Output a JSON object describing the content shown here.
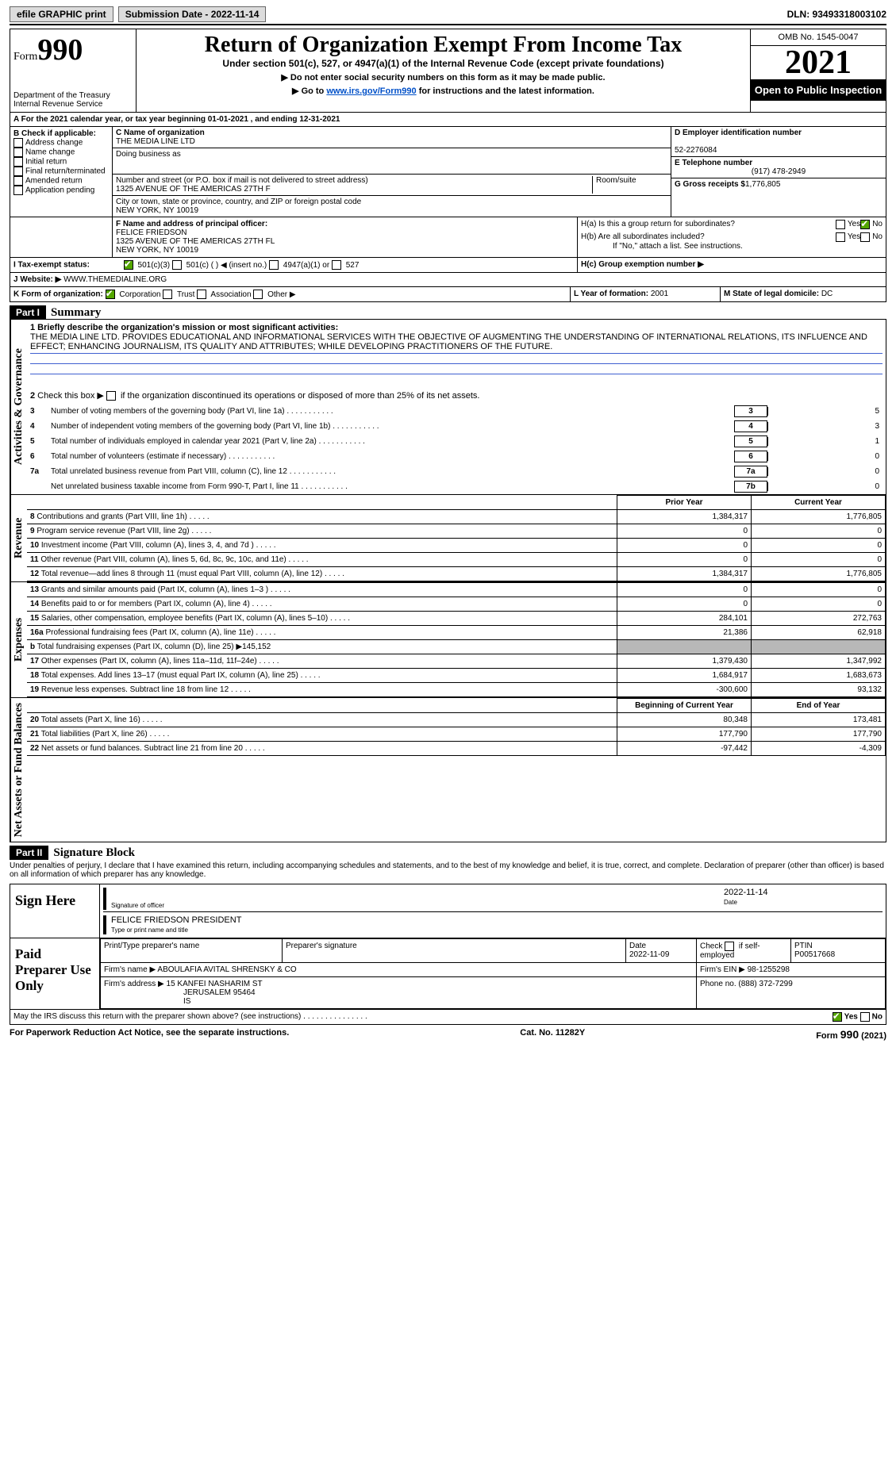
{
  "topbar": {
    "efile": "efile GRAPHIC print",
    "submission": "Submission Date - 2022-11-14",
    "dln": "DLN: 93493318003102"
  },
  "header": {
    "form_prefix": "Form",
    "form_number": "990",
    "dept": "Department of the Treasury",
    "irs": "Internal Revenue Service",
    "title": "Return of Organization Exempt From Income Tax",
    "sub": "Under section 501(c), 527, or 4947(a)(1) of the Internal Revenue Code (except private foundations)",
    "note1": "▶ Do not enter social security numbers on this form as it may be made public.",
    "note2_pre": "▶ Go to ",
    "note2_link": "www.irs.gov/Form990",
    "note2_post": " for instructions and the latest information.",
    "omb": "OMB No. 1545-0047",
    "year": "2021",
    "open": "Open to Public Inspection"
  },
  "A": {
    "line": "A For the 2021 calendar year, or tax year beginning 01-01-2021     , and ending 12-31-2021"
  },
  "B": {
    "label": "B Check if applicable:",
    "items": [
      "Address change",
      "Name change",
      "Initial return",
      "Final return/terminated",
      "Amended return",
      "Application pending"
    ]
  },
  "C": {
    "name_label": "C Name of organization",
    "name": "THE MEDIA LINE LTD",
    "dba_label": "Doing business as",
    "dba": "",
    "street_label": "Number and street (or P.O. box if mail is not delivered to street address)",
    "room": "Room/suite",
    "street": "1325 AVENUE OF THE AMERICAS 27TH F",
    "city_label": "City or town, state or province, country, and ZIP or foreign postal code",
    "city": "NEW YORK, NY  10019"
  },
  "D": {
    "label": "D Employer identification number",
    "value": "52-2276084"
  },
  "E": {
    "label": "E Telephone number",
    "value": "(917) 478-2949"
  },
  "G": {
    "label": "G Gross receipts $",
    "value": "1,776,805"
  },
  "F": {
    "label": "F  Name and address of principal officer:",
    "name": "FELICE FRIEDSON",
    "addr1": "1325 AVENUE OF THE AMERICAS 27TH FL",
    "addr2": "NEW YORK, NY  10019"
  },
  "H": {
    "a": "H(a)  Is this a group return for subordinates?",
    "b": "H(b)  Are all subordinates included?",
    "bnote": "If \"No,\" attach a list. See instructions.",
    "c": "H(c)  Group exemption number ▶",
    "yes": "Yes",
    "no": "No"
  },
  "I": {
    "label": "I   Tax-exempt status:",
    "opts": [
      "501(c)(3)",
      "501(c) (   ) ◀ (insert no.)",
      "4947(a)(1) or",
      "527"
    ]
  },
  "J": {
    "label": "J   Website: ▶",
    "value": "  WWW.THEMEDIALINE.ORG"
  },
  "K": {
    "label": "K Form of organization:",
    "opts": [
      "Corporation",
      "Trust",
      "Association",
      "Other ▶"
    ]
  },
  "L": {
    "label": "L Year of formation:",
    "value": "2001"
  },
  "M": {
    "label": "M State of legal domicile:",
    "value": "DC"
  },
  "partI": {
    "tag": "Part I",
    "title": "Summary"
  },
  "governance": {
    "side": "Activities & Governance",
    "q1": "1  Briefly describe the organization's mission or most significant activities:",
    "mission": "THE MEDIA LINE LTD. PROVIDES EDUCATIONAL AND INFORMATIONAL SERVICES WITH THE OBJECTIVE OF AUGMENTING THE UNDERSTANDING OF INTERNATIONAL RELATIONS, ITS INFLUENCE AND EFFECT; ENHANCING JOURNALISM, ITS QUALITY AND ATTRIBUTES; WHILE DEVELOPING PRACTITIONERS OF THE FUTURE.",
    "q2": "2   Check this box ▶      if the organization discontinued its operations or disposed of more than 25% of its net assets.",
    "rows": [
      {
        "n": "3",
        "t": "Number of voting members of the governing body (Part VI, line 1a)",
        "box": "3",
        "v": "5"
      },
      {
        "n": "4",
        "t": "Number of independent voting members of the governing body (Part VI, line 1b)",
        "box": "4",
        "v": "3"
      },
      {
        "n": "5",
        "t": "Total number of individuals employed in calendar year 2021 (Part V, line 2a)",
        "box": "5",
        "v": "1"
      },
      {
        "n": "6",
        "t": "Total number of volunteers (estimate if necessary)",
        "box": "6",
        "v": "0"
      },
      {
        "n": "7a",
        "t": "Total unrelated business revenue from Part VIII, column (C), line 12",
        "box": "7a",
        "v": "0"
      },
      {
        "n": "",
        "t": "Net unrelated business taxable income from Form 990-T, Part I, line 11",
        "box": "7b",
        "v": "0"
      }
    ]
  },
  "revexp": {
    "pyh": "Prior Year",
    "cyh": "Current Year",
    "sections": [
      {
        "side": "Revenue",
        "rows": [
          {
            "n": "8",
            "t": "Contributions and grants (Part VIII, line 1h)",
            "py": "1,384,317",
            "cy": "1,776,805"
          },
          {
            "n": "9",
            "t": "Program service revenue (Part VIII, line 2g)",
            "py": "0",
            "cy": "0"
          },
          {
            "n": "10",
            "t": "Investment income (Part VIII, column (A), lines 3, 4, and 7d )",
            "py": "0",
            "cy": "0"
          },
          {
            "n": "11",
            "t": "Other revenue (Part VIII, column (A), lines 5, 6d, 8c, 9c, 10c, and 11e)",
            "py": "0",
            "cy": "0"
          },
          {
            "n": "12",
            "t": "Total revenue—add lines 8 through 11 (must equal Part VIII, column (A), line 12)",
            "py": "1,384,317",
            "cy": "1,776,805"
          }
        ]
      },
      {
        "side": "Expenses",
        "rows": [
          {
            "n": "13",
            "t": "Grants and similar amounts paid (Part IX, column (A), lines 1–3 )",
            "py": "0",
            "cy": "0"
          },
          {
            "n": "14",
            "t": "Benefits paid to or for members (Part IX, column (A), line 4)",
            "py": "0",
            "cy": "0"
          },
          {
            "n": "15",
            "t": "Salaries, other compensation, employee benefits (Part IX, column (A), lines 5–10)",
            "py": "284,101",
            "cy": "272,763"
          },
          {
            "n": "16a",
            "t": "Professional fundraising fees (Part IX, column (A), line 11e)",
            "py": "21,386",
            "cy": "62,918"
          },
          {
            "n": "b",
            "t": "Total fundraising expenses (Part IX, column (D), line 25) ▶145,152",
            "py": "",
            "cy": "",
            "grey": true
          },
          {
            "n": "17",
            "t": "Other expenses (Part IX, column (A), lines 11a–11d, 11f–24e)",
            "py": "1,379,430",
            "cy": "1,347,992"
          },
          {
            "n": "18",
            "t": "Total expenses. Add lines 13–17 (must equal Part IX, column (A), line 25)",
            "py": "1,684,917",
            "cy": "1,683,673"
          },
          {
            "n": "19",
            "t": "Revenue less expenses. Subtract line 18 from line 12",
            "py": "-300,600",
            "cy": "93,132"
          }
        ]
      },
      {
        "side": "Net Assets or Fund Balances",
        "boyh": "Beginning of Current Year",
        "eoyh": "End of Year",
        "rows": [
          {
            "n": "20",
            "t": "Total assets (Part X, line 16)",
            "py": "80,348",
            "cy": "173,481"
          },
          {
            "n": "21",
            "t": "Total liabilities (Part X, line 26)",
            "py": "177,790",
            "cy": "177,790"
          },
          {
            "n": "22",
            "t": "Net assets or fund balances. Subtract line 21 from line 20",
            "py": "-97,442",
            "cy": "-4,309"
          }
        ]
      }
    ]
  },
  "partII": {
    "tag": "Part II",
    "title": "Signature Block",
    "decl": "Under penalties of perjury, I declare that I have examined this return, including accompanying schedules and statements, and to the best of my knowledge and belief, it is true, correct, and complete. Declaration of preparer (other than officer) is based on all information of which preparer has any knowledge."
  },
  "sign": {
    "side": "Sign Here",
    "sig_label": "Signature of officer",
    "date_label": "Date",
    "date": "2022-11-14",
    "name": "FELICE FRIEDSON  PRESIDENT",
    "name_label": "Type or print name and title"
  },
  "prep": {
    "side": "Paid Preparer Use Only",
    "c1": "Print/Type preparer's name",
    "c2": "Preparer's signature",
    "c3": "Date",
    "date": "2022-11-09",
    "c4": "Check       if self-employed",
    "c5": "PTIN",
    "ptin": "P00517668",
    "firm_label": "Firm's name      ▶",
    "firm": "ABOULAFIA AVITAL SHRENSKY & CO",
    "ein_label": "Firm's EIN ▶",
    "ein": "98-1255298",
    "addr_label": "Firm's address ▶",
    "addr1": "15 KANFEI NASHARIM ST",
    "addr2": "JERUSALEM  95464",
    "addr3": "IS",
    "phone_label": "Phone no.",
    "phone": "(888) 372-7299"
  },
  "discuss": {
    "t": "May the IRS discuss this return with the preparer shown above? (see instructions)",
    "yes": "Yes",
    "no": "No"
  },
  "footer": {
    "left": "For Paperwork Reduction Act Notice, see the separate instructions.",
    "mid": "Cat. No. 11282Y",
    "right": "Form 990 (2021)"
  }
}
